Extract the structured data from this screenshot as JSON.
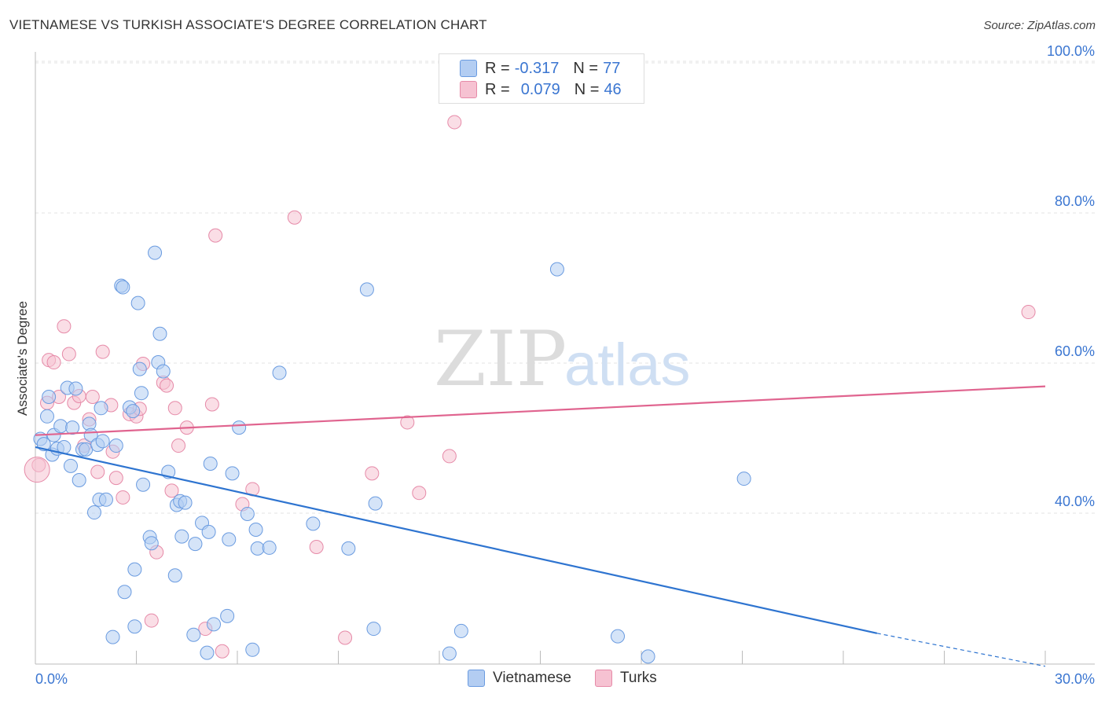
{
  "header": {
    "title": "VIETNAMESE VS TURKISH ASSOCIATE'S DEGREE CORRELATION CHART",
    "source": "Source: ZipAtlas.com"
  },
  "legend_top": {
    "rows": [
      {
        "r_label": "R =",
        "r_value": "-0.317",
        "n_label": "N =",
        "n_value": "77"
      },
      {
        "r_label": "R =",
        "r_value": "0.079",
        "n_label": "N =",
        "n_value": "46"
      }
    ]
  },
  "watermark": {
    "zip": "ZIP",
    "atlas": "atlas"
  },
  "colors": {
    "vietnamese_fill": "#b3cdf2",
    "vietnamese_stroke": "#6a9be0",
    "vietnamese_line": "#2e74d0",
    "turks_fill": "#f6c2d2",
    "turks_stroke": "#e68aa8",
    "turks_line": "#e0648f",
    "tick_label": "#3b76d1"
  },
  "chart_data": {
    "type": "scatter",
    "title": "VIETNAMESE VS TURKISH ASSOCIATE'S DEGREE CORRELATION CHART",
    "xlabel": "",
    "ylabel": "Associate's Degree",
    "xlim": [
      0,
      30
    ],
    "ylim": [
      20,
      102
    ],
    "x_tick_labels": [
      "0.0%",
      "30.0%"
    ],
    "y_ticks": [
      40,
      60,
      80,
      100
    ],
    "y_tick_labels": [
      "40.0%",
      "60.0%",
      "80.0%",
      "100.0%"
    ],
    "grid": true,
    "legend_position": "bottom",
    "series": [
      {
        "name": "Vietnamese",
        "color": "#b3cdf2",
        "R": -0.317,
        "N": 77,
        "trend": {
          "x": [
            0,
            25
          ],
          "y": [
            48.8,
            24.0
          ],
          "dashed_extension_to": [
            30,
            19.6
          ]
        },
        "points": [
          [
            0.15,
            49.9
          ],
          [
            0.25,
            49.2
          ],
          [
            0.35,
            52.9
          ],
          [
            0.4,
            55.5
          ],
          [
            0.5,
            47.8
          ],
          [
            0.55,
            50.4
          ],
          [
            0.65,
            48.6
          ],
          [
            0.75,
            51.6
          ],
          [
            0.85,
            48.8
          ],
          [
            0.95,
            56.7
          ],
          [
            1.05,
            46.3
          ],
          [
            1.1,
            51.4
          ],
          [
            1.2,
            56.6
          ],
          [
            1.3,
            44.4
          ],
          [
            1.4,
            48.5
          ],
          [
            1.5,
            48.5
          ],
          [
            1.6,
            51.9
          ],
          [
            1.65,
            50.4
          ],
          [
            1.75,
            40.1
          ],
          [
            1.85,
            49.1
          ],
          [
            1.9,
            41.8
          ],
          [
            1.95,
            54.0
          ],
          [
            2.0,
            49.6
          ],
          [
            2.1,
            41.8
          ],
          [
            2.3,
            23.5
          ],
          [
            2.4,
            49.0
          ],
          [
            2.55,
            70.3
          ],
          [
            2.6,
            70.1
          ],
          [
            2.65,
            29.5
          ],
          [
            2.8,
            54.1
          ],
          [
            2.9,
            53.6
          ],
          [
            2.95,
            32.5
          ],
          [
            2.95,
            24.9
          ],
          [
            3.05,
            68.0
          ],
          [
            3.1,
            59.2
          ],
          [
            3.15,
            56.0
          ],
          [
            3.2,
            43.8
          ],
          [
            3.4,
            36.8
          ],
          [
            3.45,
            36.0
          ],
          [
            3.55,
            74.7
          ],
          [
            3.65,
            60.1
          ],
          [
            3.7,
            63.9
          ],
          [
            3.8,
            58.9
          ],
          [
            3.95,
            45.5
          ],
          [
            4.15,
            31.7
          ],
          [
            4.2,
            41.1
          ],
          [
            4.3,
            41.6
          ],
          [
            4.35,
            36.9
          ],
          [
            4.45,
            41.4
          ],
          [
            4.7,
            23.8
          ],
          [
            4.75,
            35.9
          ],
          [
            4.95,
            38.7
          ],
          [
            5.1,
            21.4
          ],
          [
            5.15,
            37.5
          ],
          [
            5.2,
            46.6
          ],
          [
            5.3,
            25.2
          ],
          [
            5.7,
            26.3
          ],
          [
            5.75,
            36.5
          ],
          [
            5.85,
            45.3
          ],
          [
            6.05,
            51.4
          ],
          [
            6.3,
            39.9
          ],
          [
            6.45,
            21.8
          ],
          [
            6.55,
            37.8
          ],
          [
            6.6,
            35.3
          ],
          [
            6.95,
            35.4
          ],
          [
            7.25,
            58.7
          ],
          [
            8.25,
            38.6
          ],
          [
            9.3,
            35.3
          ],
          [
            9.85,
            69.8
          ],
          [
            10.1,
            41.3
          ],
          [
            10.05,
            24.6
          ],
          [
            12.3,
            21.3
          ],
          [
            12.65,
            24.3
          ],
          [
            15.5,
            72.5
          ],
          [
            17.3,
            23.6
          ],
          [
            18.2,
            20.9
          ],
          [
            21.05,
            44.6
          ]
        ]
      },
      {
        "name": "Turks",
        "color": "#f6c2d2",
        "R": 0.079,
        "N": 46,
        "trend": {
          "x": [
            0,
            30
          ],
          "y": [
            50.4,
            56.9
          ]
        },
        "points": [
          [
            0.1,
            46.4
          ],
          [
            0.35,
            54.7
          ],
          [
            0.4,
            60.4
          ],
          [
            0.55,
            60.1
          ],
          [
            0.7,
            55.5
          ],
          [
            0.85,
            64.9
          ],
          [
            1.0,
            61.2
          ],
          [
            1.15,
            54.7
          ],
          [
            1.3,
            55.6
          ],
          [
            1.45,
            49.0
          ],
          [
            1.6,
            52.5
          ],
          [
            1.7,
            55.5
          ],
          [
            1.85,
            45.5
          ],
          [
            2.0,
            61.5
          ],
          [
            2.25,
            54.4
          ],
          [
            2.3,
            48.2
          ],
          [
            2.4,
            44.7
          ],
          [
            2.6,
            42.1
          ],
          [
            2.8,
            53.2
          ],
          [
            3.0,
            52.9
          ],
          [
            3.1,
            53.9
          ],
          [
            3.2,
            59.9
          ],
          [
            3.45,
            25.7
          ],
          [
            3.6,
            34.8
          ],
          [
            3.8,
            57.4
          ],
          [
            3.9,
            57.0
          ],
          [
            4.05,
            43.0
          ],
          [
            4.15,
            54.0
          ],
          [
            4.25,
            49.0
          ],
          [
            4.5,
            51.4
          ],
          [
            5.05,
            24.6
          ],
          [
            5.25,
            54.5
          ],
          [
            5.35,
            77.0
          ],
          [
            5.55,
            21.6
          ],
          [
            6.15,
            41.2
          ],
          [
            6.45,
            43.2
          ],
          [
            7.7,
            79.4
          ],
          [
            8.35,
            35.5
          ],
          [
            9.2,
            23.4
          ],
          [
            10.0,
            45.3
          ],
          [
            11.05,
            52.1
          ],
          [
            11.4,
            42.7
          ],
          [
            12.3,
            47.6
          ],
          [
            12.45,
            92.1
          ],
          [
            29.5,
            66.8
          ],
          [
            0.05,
            45.8
          ]
        ]
      }
    ]
  }
}
